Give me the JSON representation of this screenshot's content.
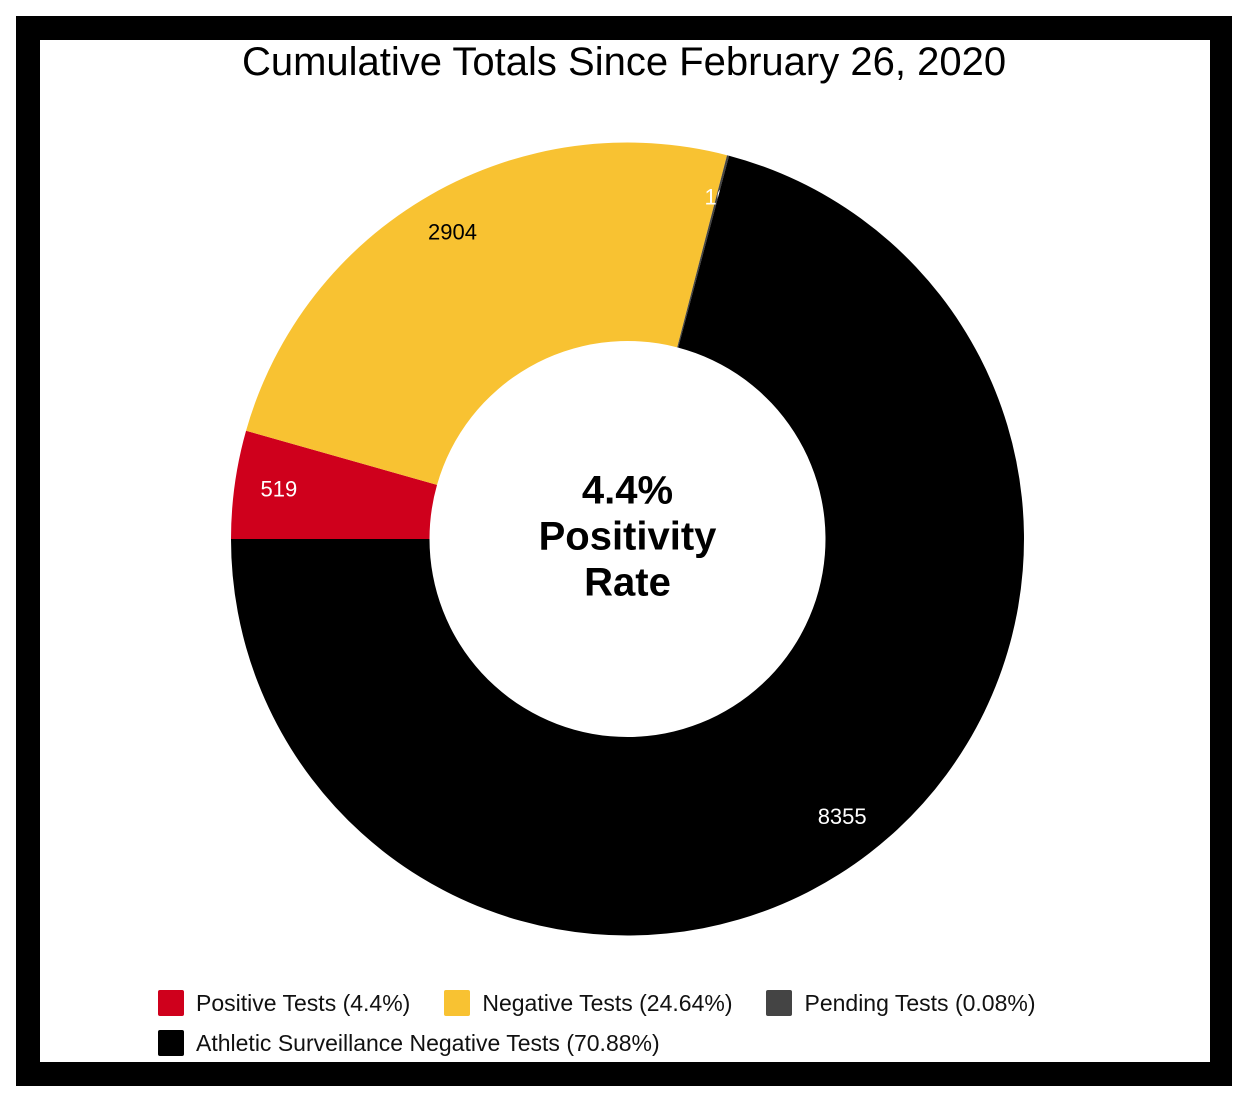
{
  "chart_data": {
    "type": "donut",
    "title": "Cumulative Totals Since February 26, 2020",
    "center_label": [
      "4.4%",
      "Positivity",
      "Rate"
    ],
    "categories": [
      "Positive Tests (4.4%)",
      "Negative Tests (24.64%)",
      "Pending Tests (0.08%)",
      "Athletic Surveillance Negative Tests (70.88%)"
    ],
    "values": [
      519,
      2904,
      10,
      8355
    ],
    "colors": [
      "#cf001c",
      "#f8c232",
      "#444444",
      "#000000"
    ]
  }
}
